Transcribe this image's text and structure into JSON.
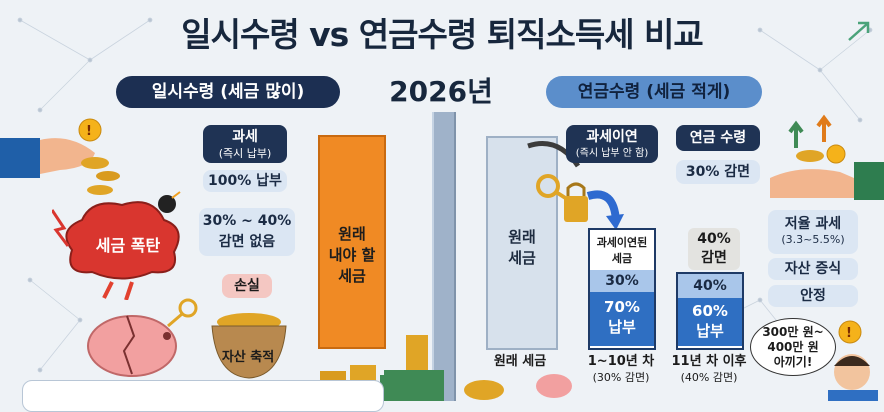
{
  "title": "일시수령 vs 연금수령 퇴직소득세 비교",
  "year": "2026년",
  "left": {
    "header": "일시수령 (세금 많이)",
    "tax_label": "과세",
    "tax_sub": "(즉시 납부)",
    "pay_full": "100% 납부",
    "reduction_line1": "30% ~ 40%",
    "reduction_line2": "감면 없음",
    "loss": "손실",
    "bomb": "세금 폭탄",
    "asset_pot": "자산 축적",
    "bar_line1": "원래",
    "bar_line2": "내야 할",
    "bar_line3": "세금"
  },
  "right": {
    "header": "연금수령 (세금 적게)",
    "deferral_label": "과세이연",
    "deferral_sub": "(즉시 납부 안 함)",
    "pension_label": "연금 수령",
    "pension_reduction": "30% 감면",
    "low_tax_label": "저율 과세",
    "low_tax_sub": "(3.3~5.5%)",
    "asset_growth": "자산 증식",
    "stability": "안정",
    "orig_bar_line1": "원래",
    "orig_bar_line2": "세금",
    "stack1_top": "과세이연된",
    "stack1_top2": "세금",
    "stack1_mid": "30%",
    "stack1_bottom_pct": "70%",
    "stack1_bottom_txt": "납부",
    "stack2_label_pct": "40%",
    "stack2_label_txt": "감면",
    "stack2_mid": "40%",
    "stack2_bottom_pct": "60%",
    "stack2_bottom_txt": "납부",
    "cap_orig": "원래 세금",
    "cap1": "1~10년 차",
    "cap1_sub": "(30% 감면)",
    "cap2": "11년 차 이후",
    "cap2_sub": "(40% 감면)",
    "bubble_line1": "300만 원~",
    "bubble_line2": "400만 원",
    "bubble_line3": "아끼기!"
  },
  "colors": {
    "navy": "#1c2f52",
    "orange": "#f08a24",
    "blue": "#5b8ecb",
    "light_blue": "#dbe6f3"
  }
}
